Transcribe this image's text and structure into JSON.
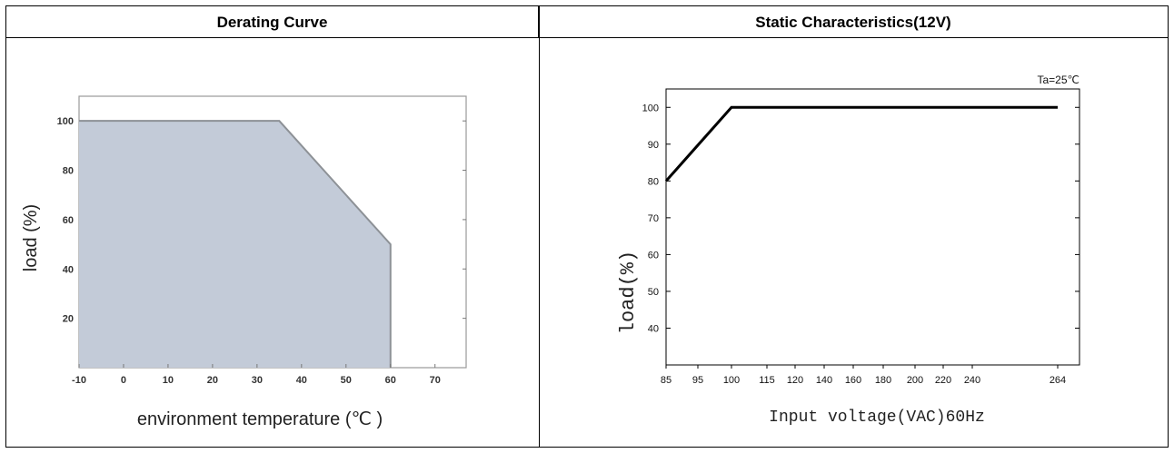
{
  "panels": {
    "left_title": "Derating Curve",
    "right_title": "Static Characteristics(12V)"
  },
  "chart_data": [
    {
      "type": "area",
      "title": "Derating Curve",
      "xlabel": "environment temperature (℃ )",
      "ylabel": "load (%)",
      "x": [
        -10,
        35,
        60,
        60
      ],
      "y": [
        100,
        100,
        50,
        0
      ],
      "xticks": [
        "-10",
        "0",
        "10",
        "20",
        "30",
        "40",
        "50",
        "60",
        "70"
      ],
      "yticks": [
        "20",
        "40",
        "60",
        "80",
        "100"
      ],
      "xlim": [
        -10,
        77
      ],
      "ylim": [
        0,
        110
      ],
      "fill_color": "#c3cbd8",
      "line_color": "#8d9196",
      "grid": false
    },
    {
      "type": "line",
      "title": "Static Characteristics(12V)",
      "annotation": "Ta=25℃",
      "xlabel": "Input voltage(VAC)60Hz",
      "ylabel": "load(%)",
      "categories": [
        "85",
        "95",
        "100",
        "115",
        "120",
        "140",
        "160",
        "180",
        "200",
        "220",
        "240",
        "264"
      ],
      "x": [
        85,
        100,
        264
      ],
      "y": [
        80,
        100,
        100
      ],
      "yticks": [
        "40",
        "50",
        "60",
        "70",
        "80",
        "90",
        "100"
      ],
      "ylim": [
        30,
        105
      ],
      "line_color": "#000000",
      "grid": false
    }
  ]
}
